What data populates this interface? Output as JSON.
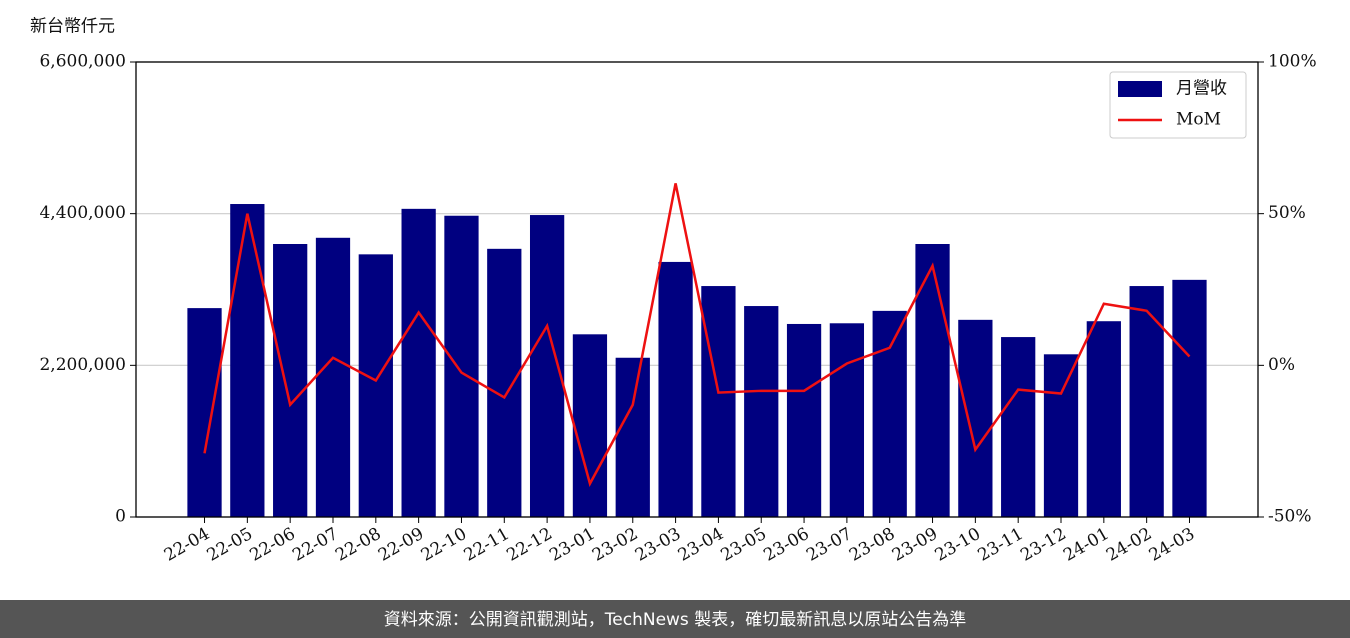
{
  "chart_data": {
    "type": "bar",
    "ylabel": "新台幣仟元",
    "categories": [
      "22-04",
      "22-05",
      "22-06",
      "22-07",
      "22-08",
      "22-09",
      "22-10",
      "22-11",
      "22-12",
      "23-01",
      "23-02",
      "23-03",
      "23-04",
      "23-05",
      "23-06",
      "23-07",
      "23-08",
      "23-09",
      "23-10",
      "23-11",
      "23-12",
      "24-01",
      "24-02",
      "24-03"
    ],
    "series": [
      {
        "name": "月營收",
        "type": "bar",
        "color": "#000080",
        "values": [
          3030000,
          4540000,
          3960000,
          4050000,
          3810000,
          4470000,
          4370000,
          3890000,
          4380000,
          2650000,
          2310000,
          3700000,
          3350000,
          3060000,
          2800000,
          2810000,
          2990000,
          3960000,
          2860000,
          2610000,
          2360000,
          2840000,
          3350000,
          3440000
        ]
      },
      {
        "name": "MoM",
        "type": "line",
        "color": "#ee1111",
        "axis": "y2",
        "values": [
          -29,
          50,
          -13,
          2.5,
          -5,
          17.4,
          -2.4,
          -10.6,
          13,
          -39,
          -13,
          60,
          -9,
          -8.4,
          -8.4,
          0.6,
          5.8,
          32.8,
          -27.8,
          -8,
          -9.3,
          20.3,
          18,
          2.9
        ]
      }
    ],
    "ylim": [
      0,
      6600000
    ],
    "yticks": [
      0,
      {
        "value": 2200000,
        "label": "2,200,000"
      },
      {
        "value": 4400000,
        "label": "4,400,000"
      },
      {
        "value": 6600000,
        "label": "6,600,000"
      }
    ],
    "y2lim": [
      -50,
      100
    ],
    "y2ticks": [
      {
        "value": -50,
        "label": "-50%"
      },
      {
        "value": 0,
        "label": "0%"
      },
      {
        "value": 50,
        "label": "50%"
      },
      {
        "value": 100,
        "label": "100%"
      }
    ],
    "grid": true,
    "legend": "upper right",
    "source": "資料來源：公開資訊觀測站，TechNews 製表，確切最新訊息以原站公告為準"
  }
}
